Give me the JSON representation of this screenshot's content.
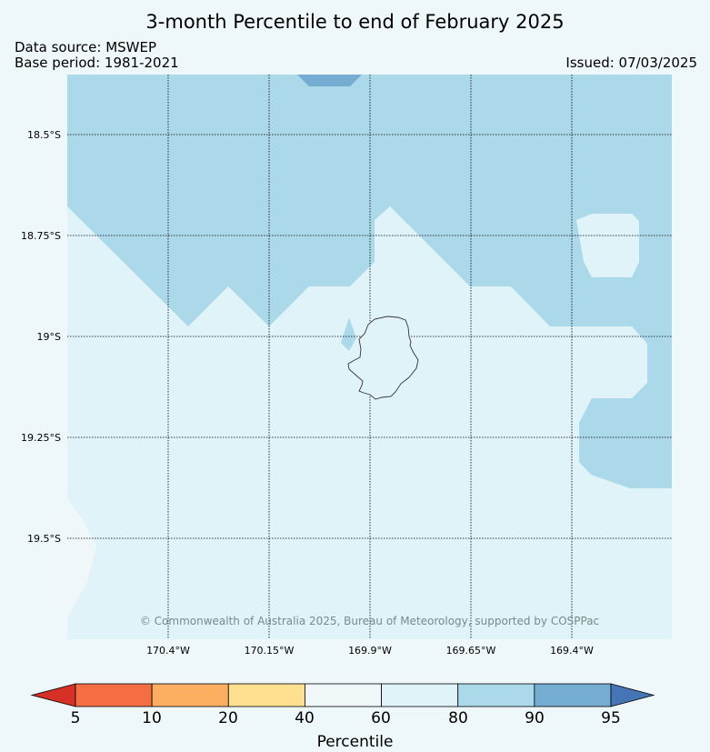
{
  "header": {
    "title": "3-month Percentile to end of February 2025",
    "data_source": "Data source: MSWEP",
    "base_period": "Base period: 1981-2021",
    "issued": "Issued: 07/03/2025"
  },
  "map": {
    "lat_labels": [
      "18.5°S",
      "18.75°S",
      "19°S",
      "19.25°S",
      "19.5°S"
    ],
    "lon_labels": [
      "170.4°W",
      "170.15°W",
      "169.9°W",
      "169.65°W",
      "169.4°W"
    ],
    "copyright": "© Commonwealth of Australia 2025, Bureau of Meteorology, supported by COSPPac",
    "colors": {
      "p60_80": "#e0f3f8",
      "p80_90": "#abd9e9",
      "p90_95": "#74add1",
      "p40_60": "#f0f7f9",
      "coast": "#333333"
    }
  },
  "colorbar": {
    "label": "Percentile",
    "ticks": [
      "5",
      "10",
      "20",
      "40",
      "60",
      "80",
      "90",
      "95"
    ],
    "colors": [
      "#d73027",
      "#f46d43",
      "#fdae61",
      "#fee090",
      "#f0f7f9",
      "#e0f3f8",
      "#abd9e9",
      "#74add1",
      "#4575b4"
    ]
  }
}
